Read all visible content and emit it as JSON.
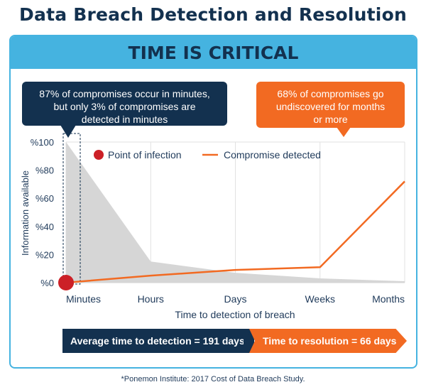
{
  "page": {
    "title": "Data Breach Detection and Resolution",
    "banner": "TIME IS CRITICAL",
    "callout_left": [
      "87% of compromises occur in minutes,",
      "but only 3% of compromises are",
      "detected in minutes"
    ],
    "callout_right": [
      "68% of compromises go",
      "undiscovered for months",
      "or more"
    ],
    "band_detection": "Average time to detection = 191 days",
    "band_resolution": "Time to resolution = 66 days",
    "footnote": "*Ponemon Institute: 2017 Cost of Data Breach Study.",
    "colors": {
      "navy": "#13314f",
      "orange": "#f26a22",
      "blue": "#45b3e0",
      "area": "#d6d6d6",
      "marker": "#cc2027"
    }
  },
  "chart_data": {
    "type": "line",
    "categories": [
      "Minutes",
      "Hours",
      "Days",
      "Weeks",
      "Months"
    ],
    "xlabel": "Time to detection of breach",
    "ylabel": "Information available",
    "yticks": [
      "%0",
      "%20",
      "%40",
      "%60",
      "%80",
      "%100"
    ],
    "ylim": [
      0,
      100
    ],
    "legend_position": "top",
    "series": [
      {
        "name": "Point of infection",
        "kind": "area",
        "values": [
          100,
          15,
          7,
          3,
          1
        ]
      },
      {
        "name": "Compromise detected",
        "kind": "line",
        "values": [
          0,
          5,
          9,
          11,
          72
        ]
      }
    ]
  }
}
